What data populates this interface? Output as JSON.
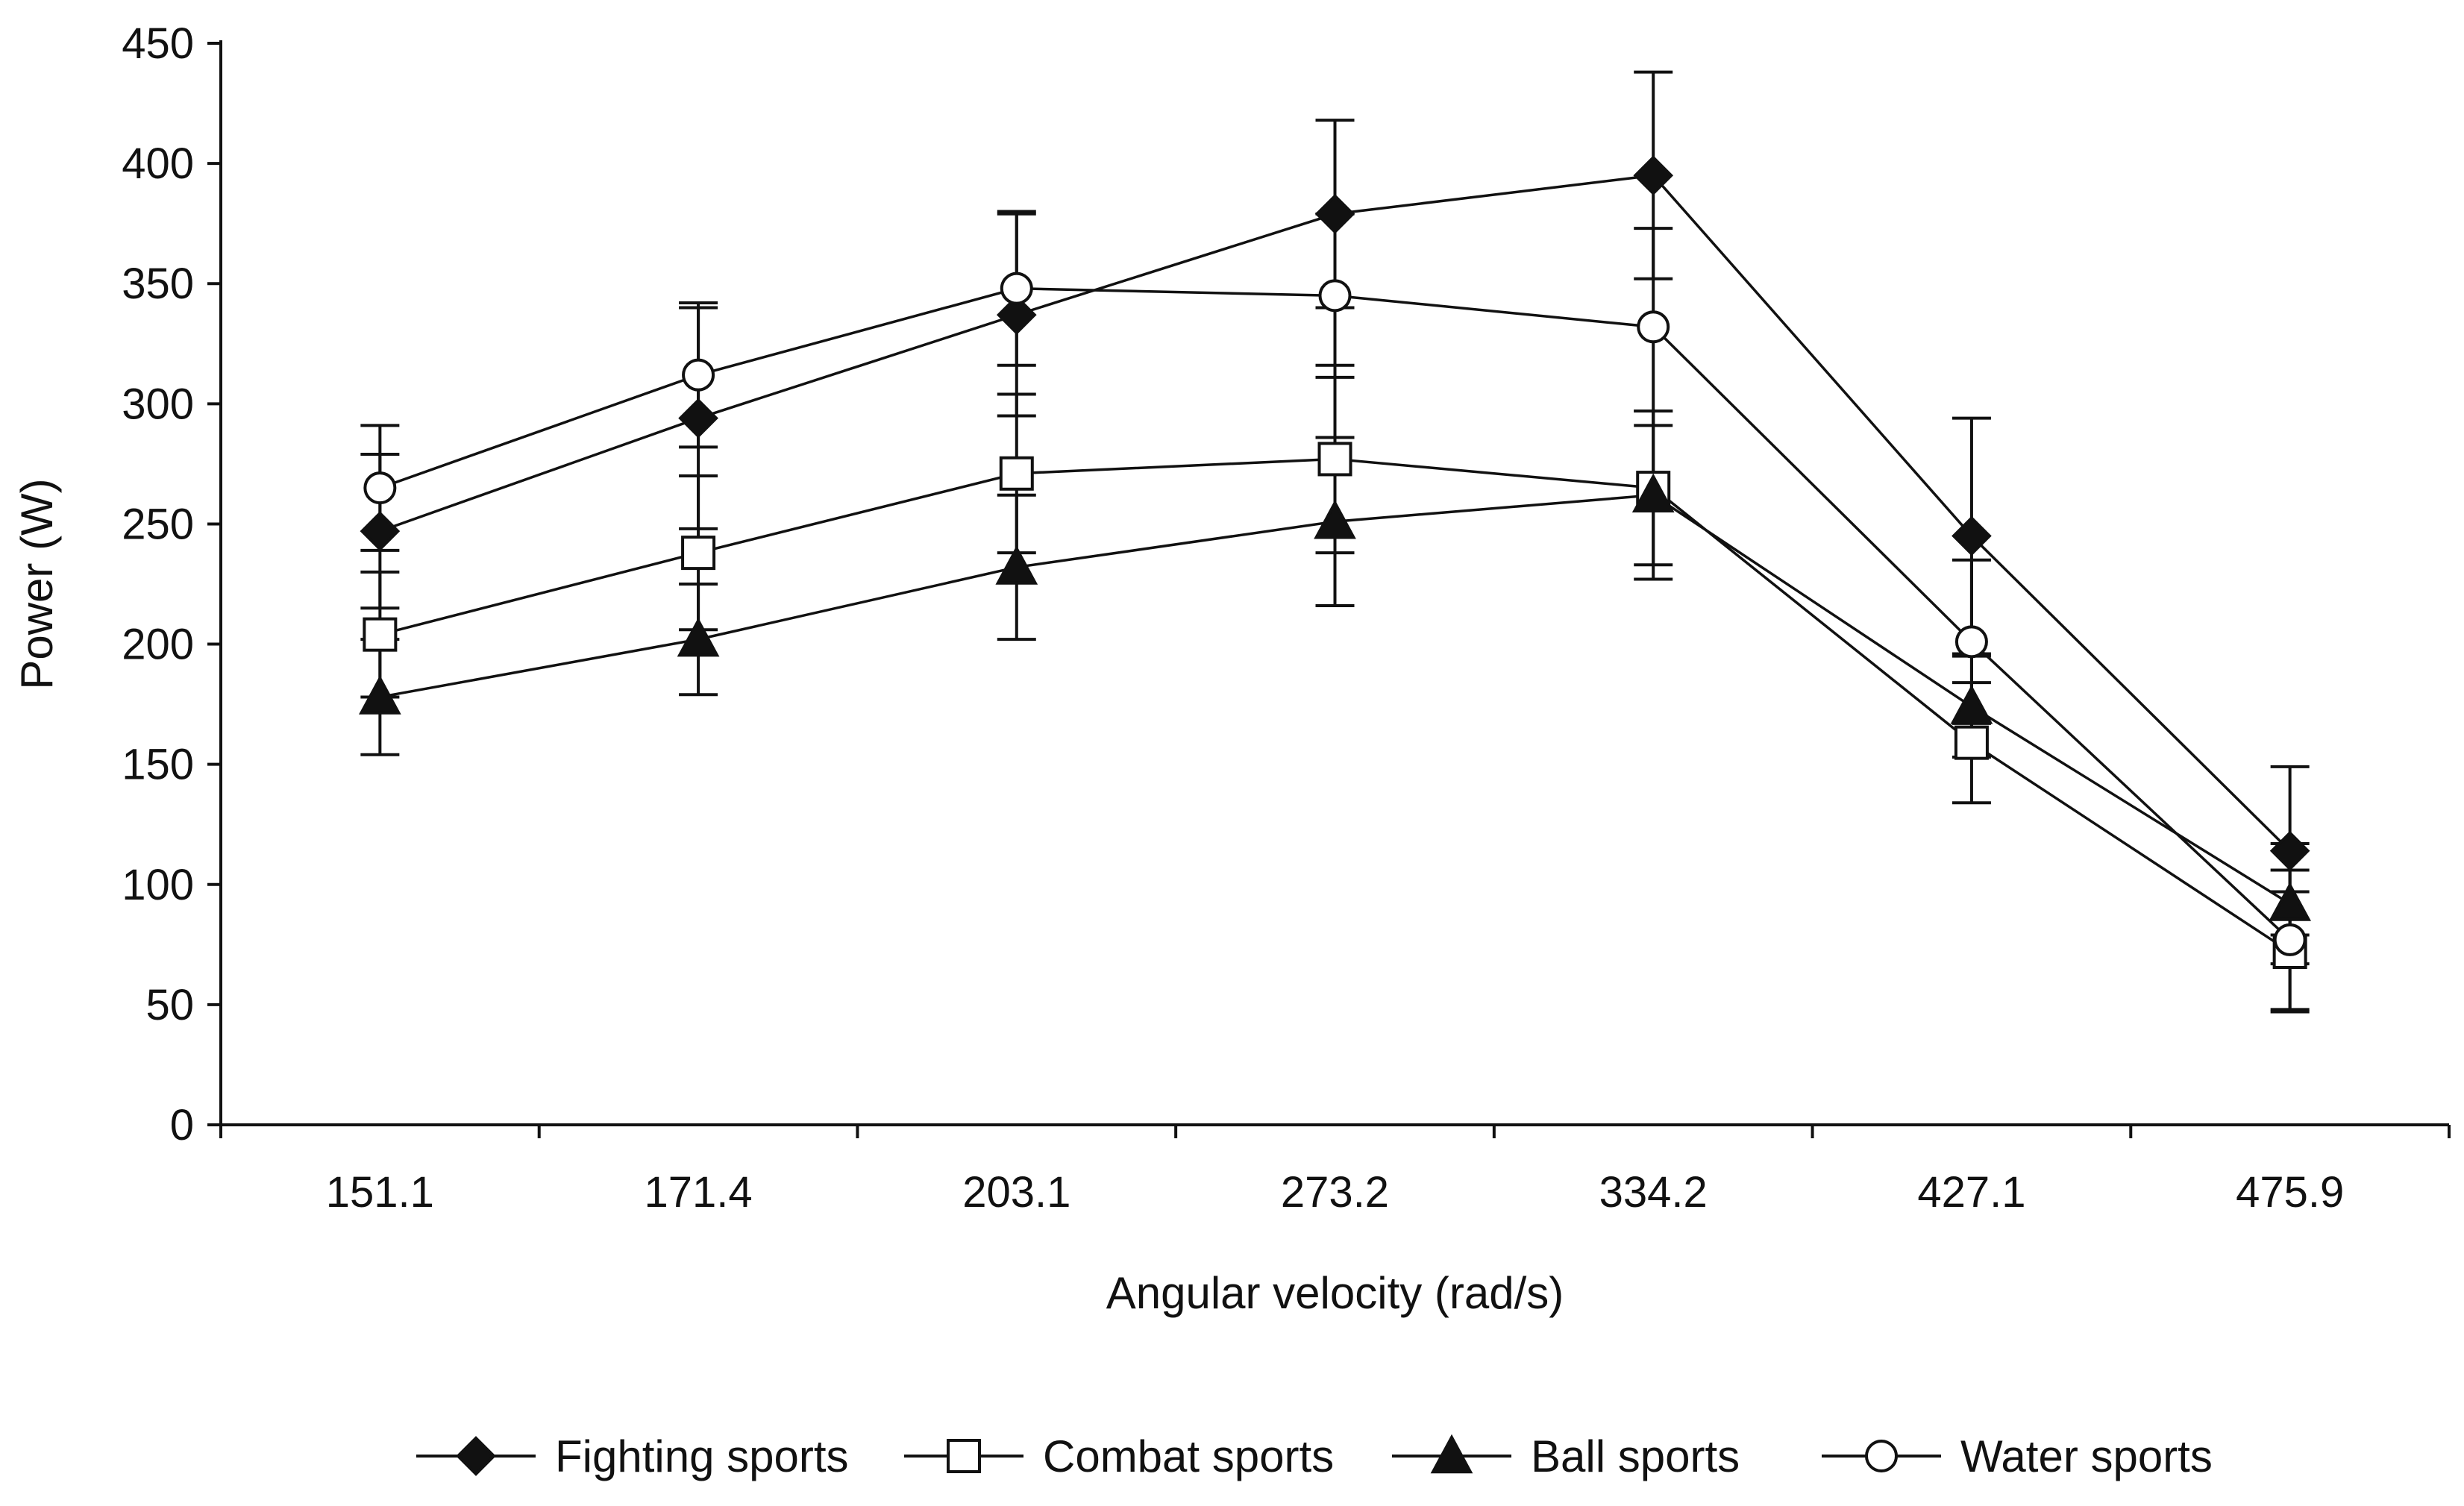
{
  "chart_data": {
    "type": "line",
    "title": "",
    "xlabel": "Angular velocity (rad/s)",
    "ylabel": "Power (W)",
    "categories": [
      "151.1",
      "171.4",
      "203.1",
      "273.2",
      "334.2",
      "427.1",
      "475.9"
    ],
    "ylim": [
      0,
      450
    ],
    "yticks": [
      0,
      50,
      100,
      150,
      200,
      250,
      300,
      350,
      400,
      450
    ],
    "grid": false,
    "legend_position": "bottom",
    "series": [
      {
        "name": "Fighting sports",
        "marker": "diamond-filled",
        "values": [
          247,
          294,
          337,
          379,
          395,
          245,
          114
        ],
        "errors": [
          32,
          46,
          42,
          39,
          43,
          49,
          35
        ]
      },
      {
        "name": "Combat sports",
        "marker": "square-open",
        "values": [
          204,
          238,
          271,
          277,
          265,
          159,
          72
        ],
        "errors": [
          26,
          32,
          33,
          39,
          32,
          25,
          25
        ]
      },
      {
        "name": "Ball sports",
        "marker": "triangle-filled",
        "values": [
          178,
          202,
          232,
          251,
          262,
          174,
          92
        ],
        "errors": [
          24,
          23,
          30,
          35,
          35,
          21,
          25
        ]
      },
      {
        "name": "Water sports",
        "marker": "circle-open",
        "values": [
          265,
          312,
          348,
          345,
          332,
          201,
          77
        ],
        "errors": [
          26,
          30,
          32,
          34,
          41,
          34,
          29
        ]
      }
    ],
    "colors": {
      "line": "#111111",
      "background": "#ffffff"
    }
  }
}
